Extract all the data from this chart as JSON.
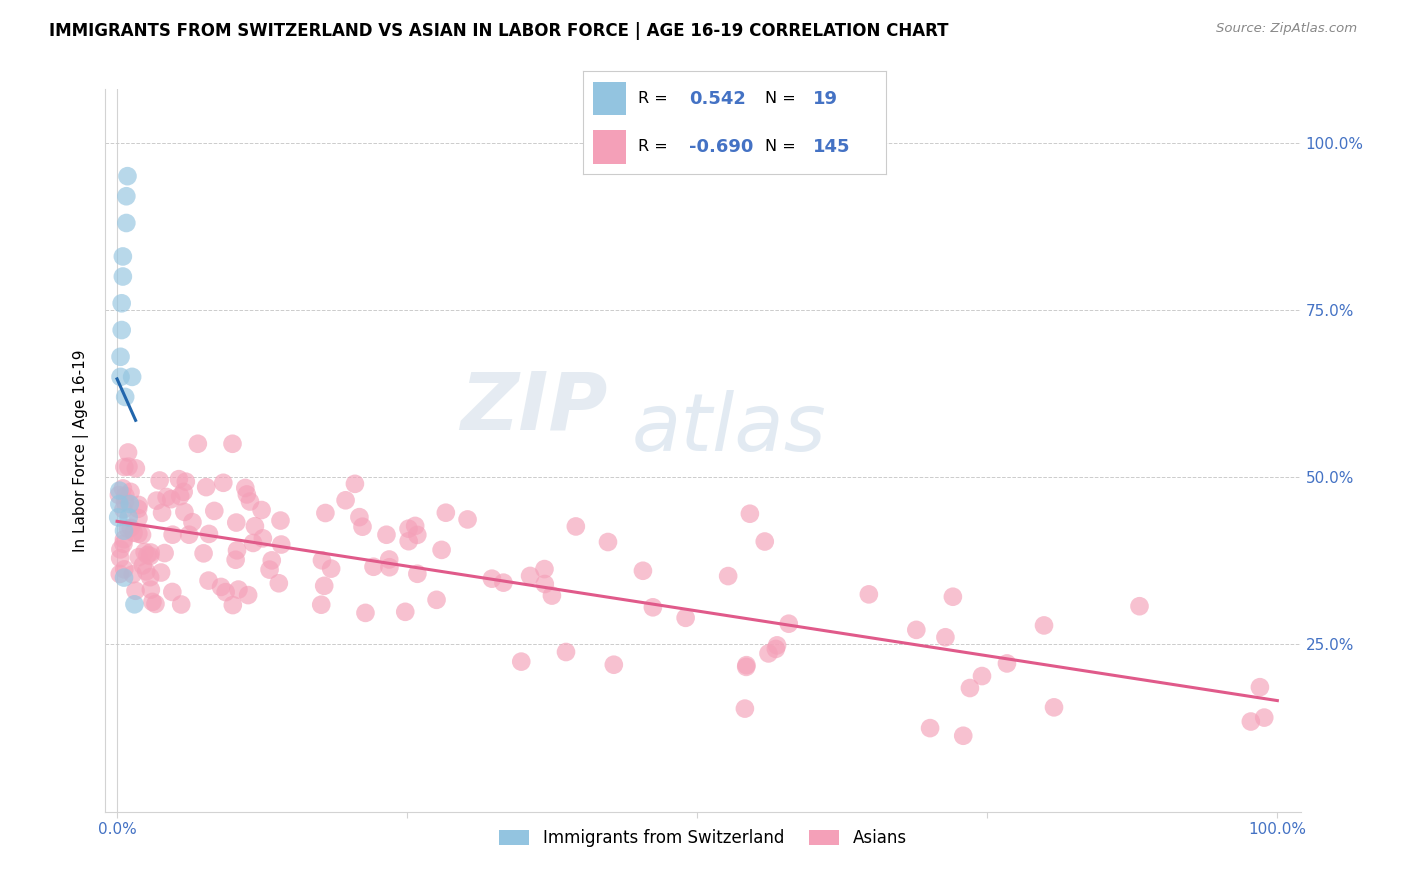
{
  "title": "IMMIGRANTS FROM SWITZERLAND VS ASIAN IN LABOR FORCE | AGE 16-19 CORRELATION CHART",
  "source": "Source: ZipAtlas.com",
  "ylabel": "In Labor Force | Age 16-19",
  "blue_color": "#93c4e0",
  "pink_color": "#f4a0b8",
  "blue_line_color": "#2166ac",
  "pink_line_color": "#e05a8a",
  "legend_R_blue": "0.542",
  "legend_N_blue": "19",
  "legend_R_pink": "-0.690",
  "legend_N_pink": "145",
  "accent_color": "#4472c4",
  "watermark_zip": "ZIP",
  "watermark_atlas": "atlas",
  "blue_seed": 77,
  "pink_seed": 42,
  "grid_color": "#cccccc",
  "title_fontsize": 12,
  "axis_label_color": "#4472c4"
}
